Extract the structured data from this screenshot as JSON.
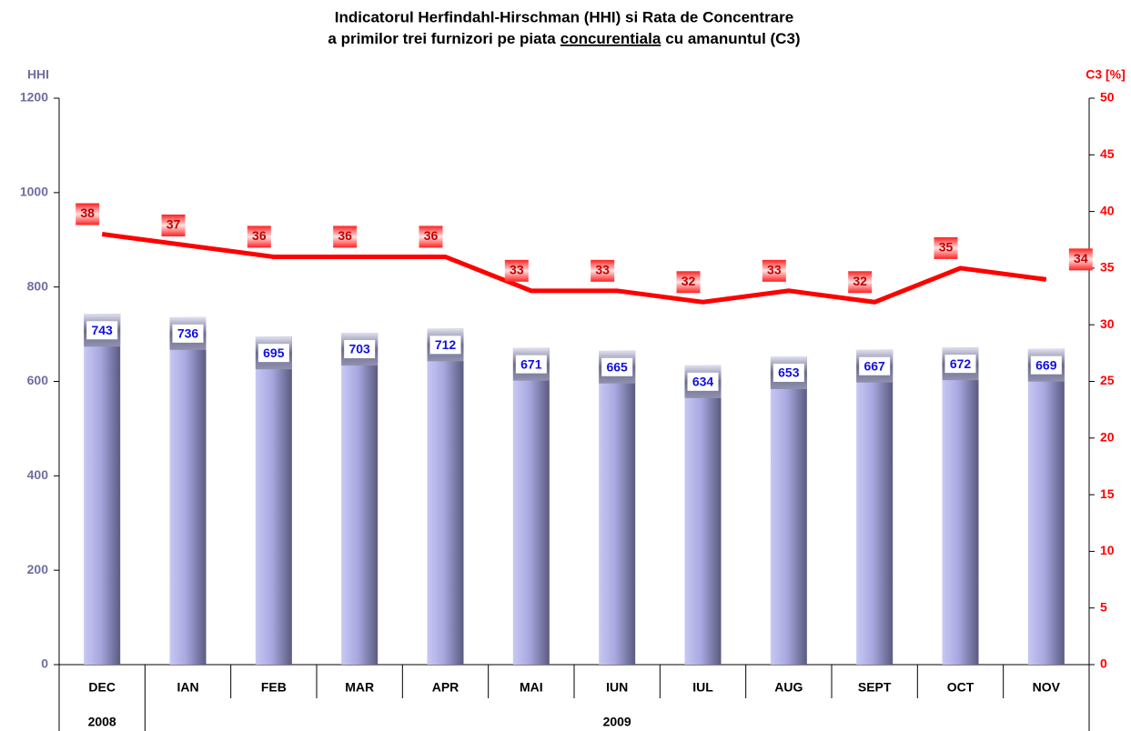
{
  "chart_data": {
    "type": "combo",
    "title": [
      "Indicatorul Herfindahl-Hirschman (HHI) si Rata de Concentrare",
      "a primilor trei furnizori pe piata",
      "concurentiala",
      "cu amanuntul (C3)"
    ],
    "y_label": "HHI",
    "y2_label": "C3 [%]",
    "categories": [
      "DEC",
      "IAN",
      "FEB",
      "MAR",
      "APR",
      "MAI",
      "IUN",
      "IUL",
      "AUG",
      "SEPT",
      "OCT",
      "NOV"
    ],
    "groups": [
      {
        "label": "2008",
        "span": 1
      },
      {
        "label": "2009",
        "span": 11
      }
    ],
    "series": [
      {
        "type": "bar",
        "color": "#9999dd",
        "values": [
          743,
          736,
          695,
          703,
          712,
          671,
          665,
          634,
          653,
          667,
          672,
          669
        ]
      },
      {
        "type": "line",
        "axis": "y2",
        "color": "#ff0000",
        "values": [
          38,
          37,
          36,
          36,
          36,
          33,
          33,
          32,
          33,
          32,
          35,
          34
        ]
      }
    ],
    "ylim": [
      0,
      1200
    ],
    "yticks": [
      0,
      200,
      400,
      600,
      800,
      1000,
      1200
    ],
    "y2lim": [
      0,
      50
    ],
    "y2ticks": [
      0,
      5,
      10,
      15,
      20,
      25,
      30,
      35,
      40,
      45,
      50
    ],
    "grid": false
  }
}
